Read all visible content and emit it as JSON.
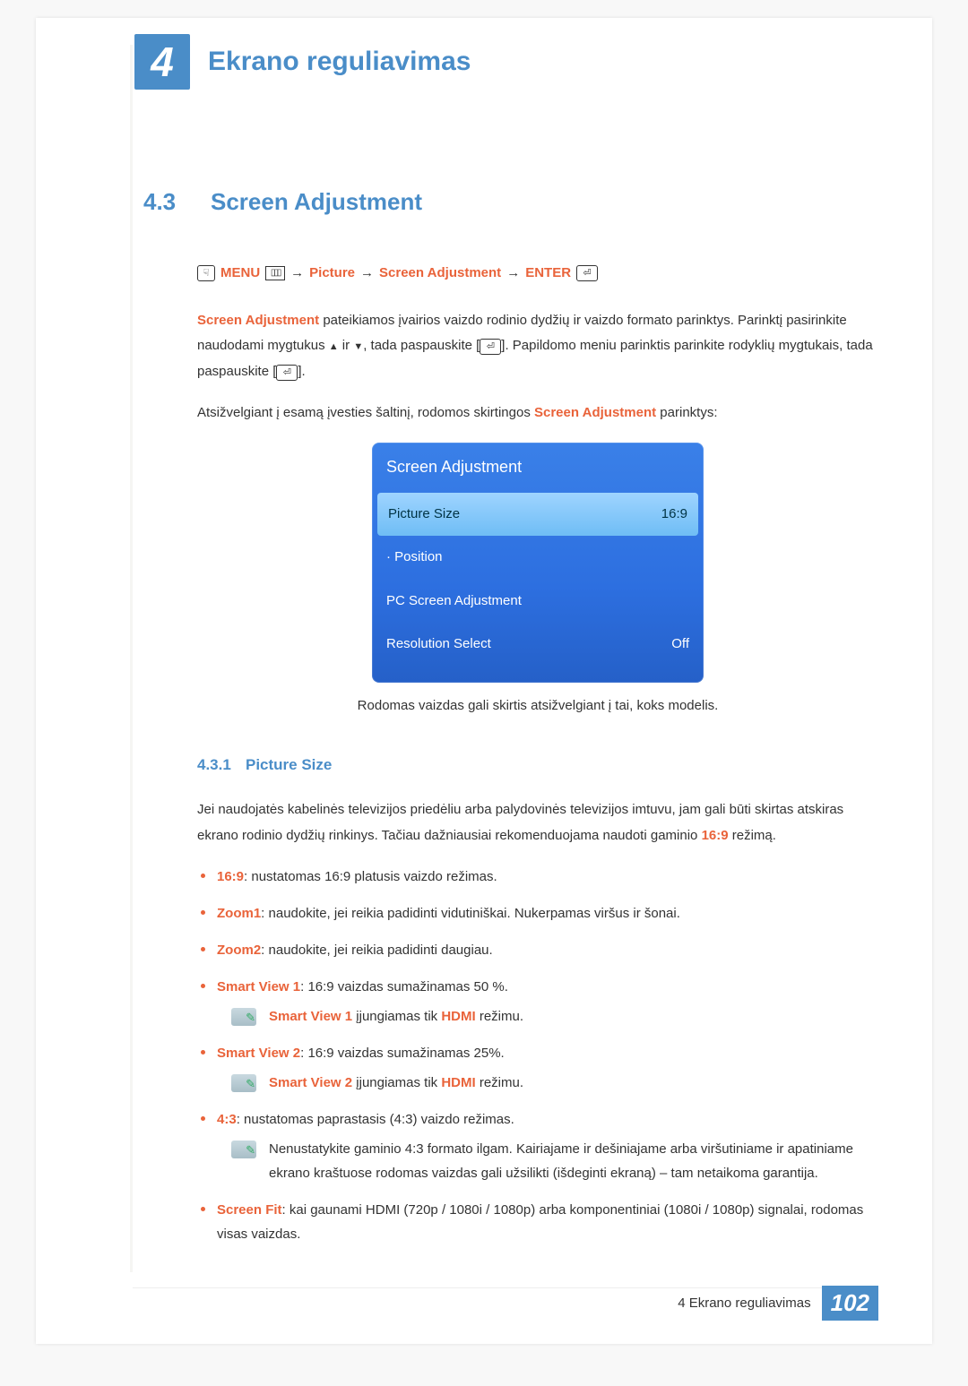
{
  "chapter": {
    "number": "4",
    "title": "Ekrano reguliavimas"
  },
  "section": {
    "number": "4.3",
    "title": "Screen Adjustment"
  },
  "nav": {
    "menu": "MENU",
    "picture": "Picture",
    "screen_adj": "Screen Adjustment",
    "enter": "ENTER",
    "arrow": "→"
  },
  "intro": {
    "p1_a": "Screen Adjustment",
    "p1_b": " pateikiamos įvairios vaizdo rodinio dydžių ir vaizdo formato parinktys. Parinktį pasirinkite naudodami mygtukus ",
    "p1_c": " ir ",
    "p1_d": ", tada paspauskite [",
    "p1_e": "]. Papildomo meniu parinktis parinkite rodyklių mygtukais, tada paspauskite [",
    "p1_f": "].",
    "p2_a": "Atsižvelgiant į esamą įvesties šaltinį, rodomos skirtingos ",
    "p2_b": "Screen Adjustment",
    "p2_c": " parinktys:"
  },
  "menu_panel": {
    "title": "Screen Adjustment",
    "rows": [
      {
        "label": "Picture Size",
        "value": "16:9",
        "selected": true
      },
      {
        "label": "· Position",
        "value": "",
        "selected": false
      },
      {
        "label": "PC Screen Adjustment",
        "value": "",
        "selected": false
      },
      {
        "label": "Resolution Select",
        "value": "Off",
        "selected": false
      }
    ],
    "bg_top": "#3a80e8",
    "bg_bottom": "#2560c8",
    "sel_top": "#9fd4ff",
    "sel_bottom": "#6fbdf5"
  },
  "caption": "Rodomas vaizdas gali skirtis atsižvelgiant į tai, koks modelis.",
  "subsection": {
    "number": "4.3.1",
    "title": "Picture Size"
  },
  "desc": {
    "a": "Jei naudojatės kabelinės televizijos priedėliu arba palydovinės televizijos imtuvu, jam gali būti skirtas atskiras ekrano rodinio dydžių rinkinys. Tačiau dažniausiai rekomenduojama naudoti gaminio ",
    "b": "16:9",
    "c": " režimą."
  },
  "options": {
    "o1": {
      "k": "16:9",
      "t": ": nustatomas 16:9 platusis vaizdo režimas."
    },
    "o2": {
      "k": "Zoom1",
      "t": ": naudokite, jei reikia padidinti vidutiniškai. Nukerpamas viršus ir šonai."
    },
    "o3": {
      "k": "Zoom2",
      "t": ": naudokite, jei reikia padidinti daugiau."
    },
    "o4": {
      "k": "Smart View 1",
      "t": ": 16:9 vaizdas sumažinamas 50 %."
    },
    "n4": {
      "a": "Smart View 1",
      "b": " įjungiamas tik ",
      "c": "HDMI",
      "d": " režimu."
    },
    "o5": {
      "k": "Smart View 2",
      "t": ": 16:9 vaizdas sumažinamas 25%."
    },
    "n5": {
      "a": "Smart View 2",
      "b": " įjungiamas tik ",
      "c": "HDMI",
      "d": " režimu."
    },
    "o6": {
      "k": "4:3",
      "t": ": nustatomas paprastasis (4:3) vaizdo režimas."
    },
    "n6": "Nenustatykite gaminio 4:3 formato ilgam. Kairiajame ir dešiniajame arba viršutiniame ir apatiniame ekrano kraštuose rodomas vaizdas gali užsilikti (išdeginti ekraną) – tam netaikoma garantija.",
    "o7": {
      "k": "Screen Fit",
      "t": ": kai gaunami HDMI (720p / 1080i / 1080p) arba komponentiniai (1080i / 1080p) signalai, rodomas visas vaizdas."
    }
  },
  "footer": {
    "text": "4 Ekrano reguliavimas",
    "page": "102"
  },
  "colors": {
    "accent_blue": "#4a8dc8",
    "accent_orange": "#e9633a",
    "text": "#333333",
    "page_bg": "#ffffff"
  }
}
